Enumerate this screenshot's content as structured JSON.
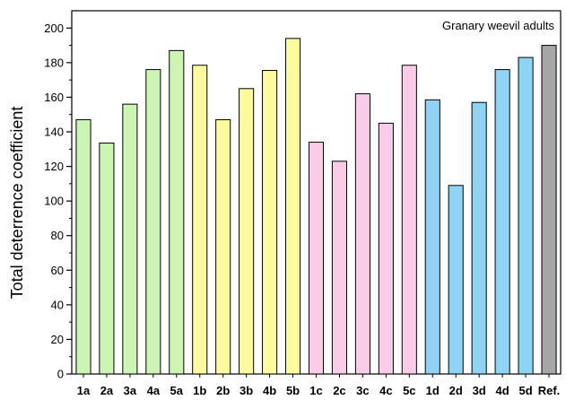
{
  "chart_data": {
    "type": "bar",
    "title": "",
    "xlabel": "",
    "ylabel": "Total deterrence coefficient",
    "annotation": "Granary weevil adults",
    "ylim": [
      0,
      210
    ],
    "yticks": [
      0,
      20,
      40,
      60,
      80,
      100,
      120,
      140,
      160,
      180,
      200
    ],
    "grid": false,
    "legend": "none",
    "categories": [
      "1a",
      "2a",
      "3a",
      "4a",
      "5a",
      "1b",
      "2b",
      "3b",
      "4b",
      "5b",
      "1c",
      "2c",
      "3c",
      "4c",
      "5c",
      "1d",
      "2d",
      "3d",
      "4d",
      "5d",
      "Ref."
    ],
    "values": [
      147,
      133.5,
      156,
      176,
      187,
      178.5,
      147,
      165,
      175.5,
      194,
      134,
      123,
      162,
      145,
      178.5,
      158.5,
      109,
      157,
      176,
      183,
      190
    ],
    "bar_colors": [
      "#ccf5b3",
      "#ccf5b3",
      "#ccf5b3",
      "#ccf5b3",
      "#ccf5b3",
      "#fbfa9c",
      "#fbfa9c",
      "#fbfa9c",
      "#fbfa9c",
      "#fbfa9c",
      "#fbcce8",
      "#fbcce8",
      "#fbcce8",
      "#fbcce8",
      "#fbcce8",
      "#8fd3f5",
      "#8fd3f5",
      "#8fd3f5",
      "#8fd3f5",
      "#8fd3f5",
      "#a6a6a6"
    ]
  }
}
